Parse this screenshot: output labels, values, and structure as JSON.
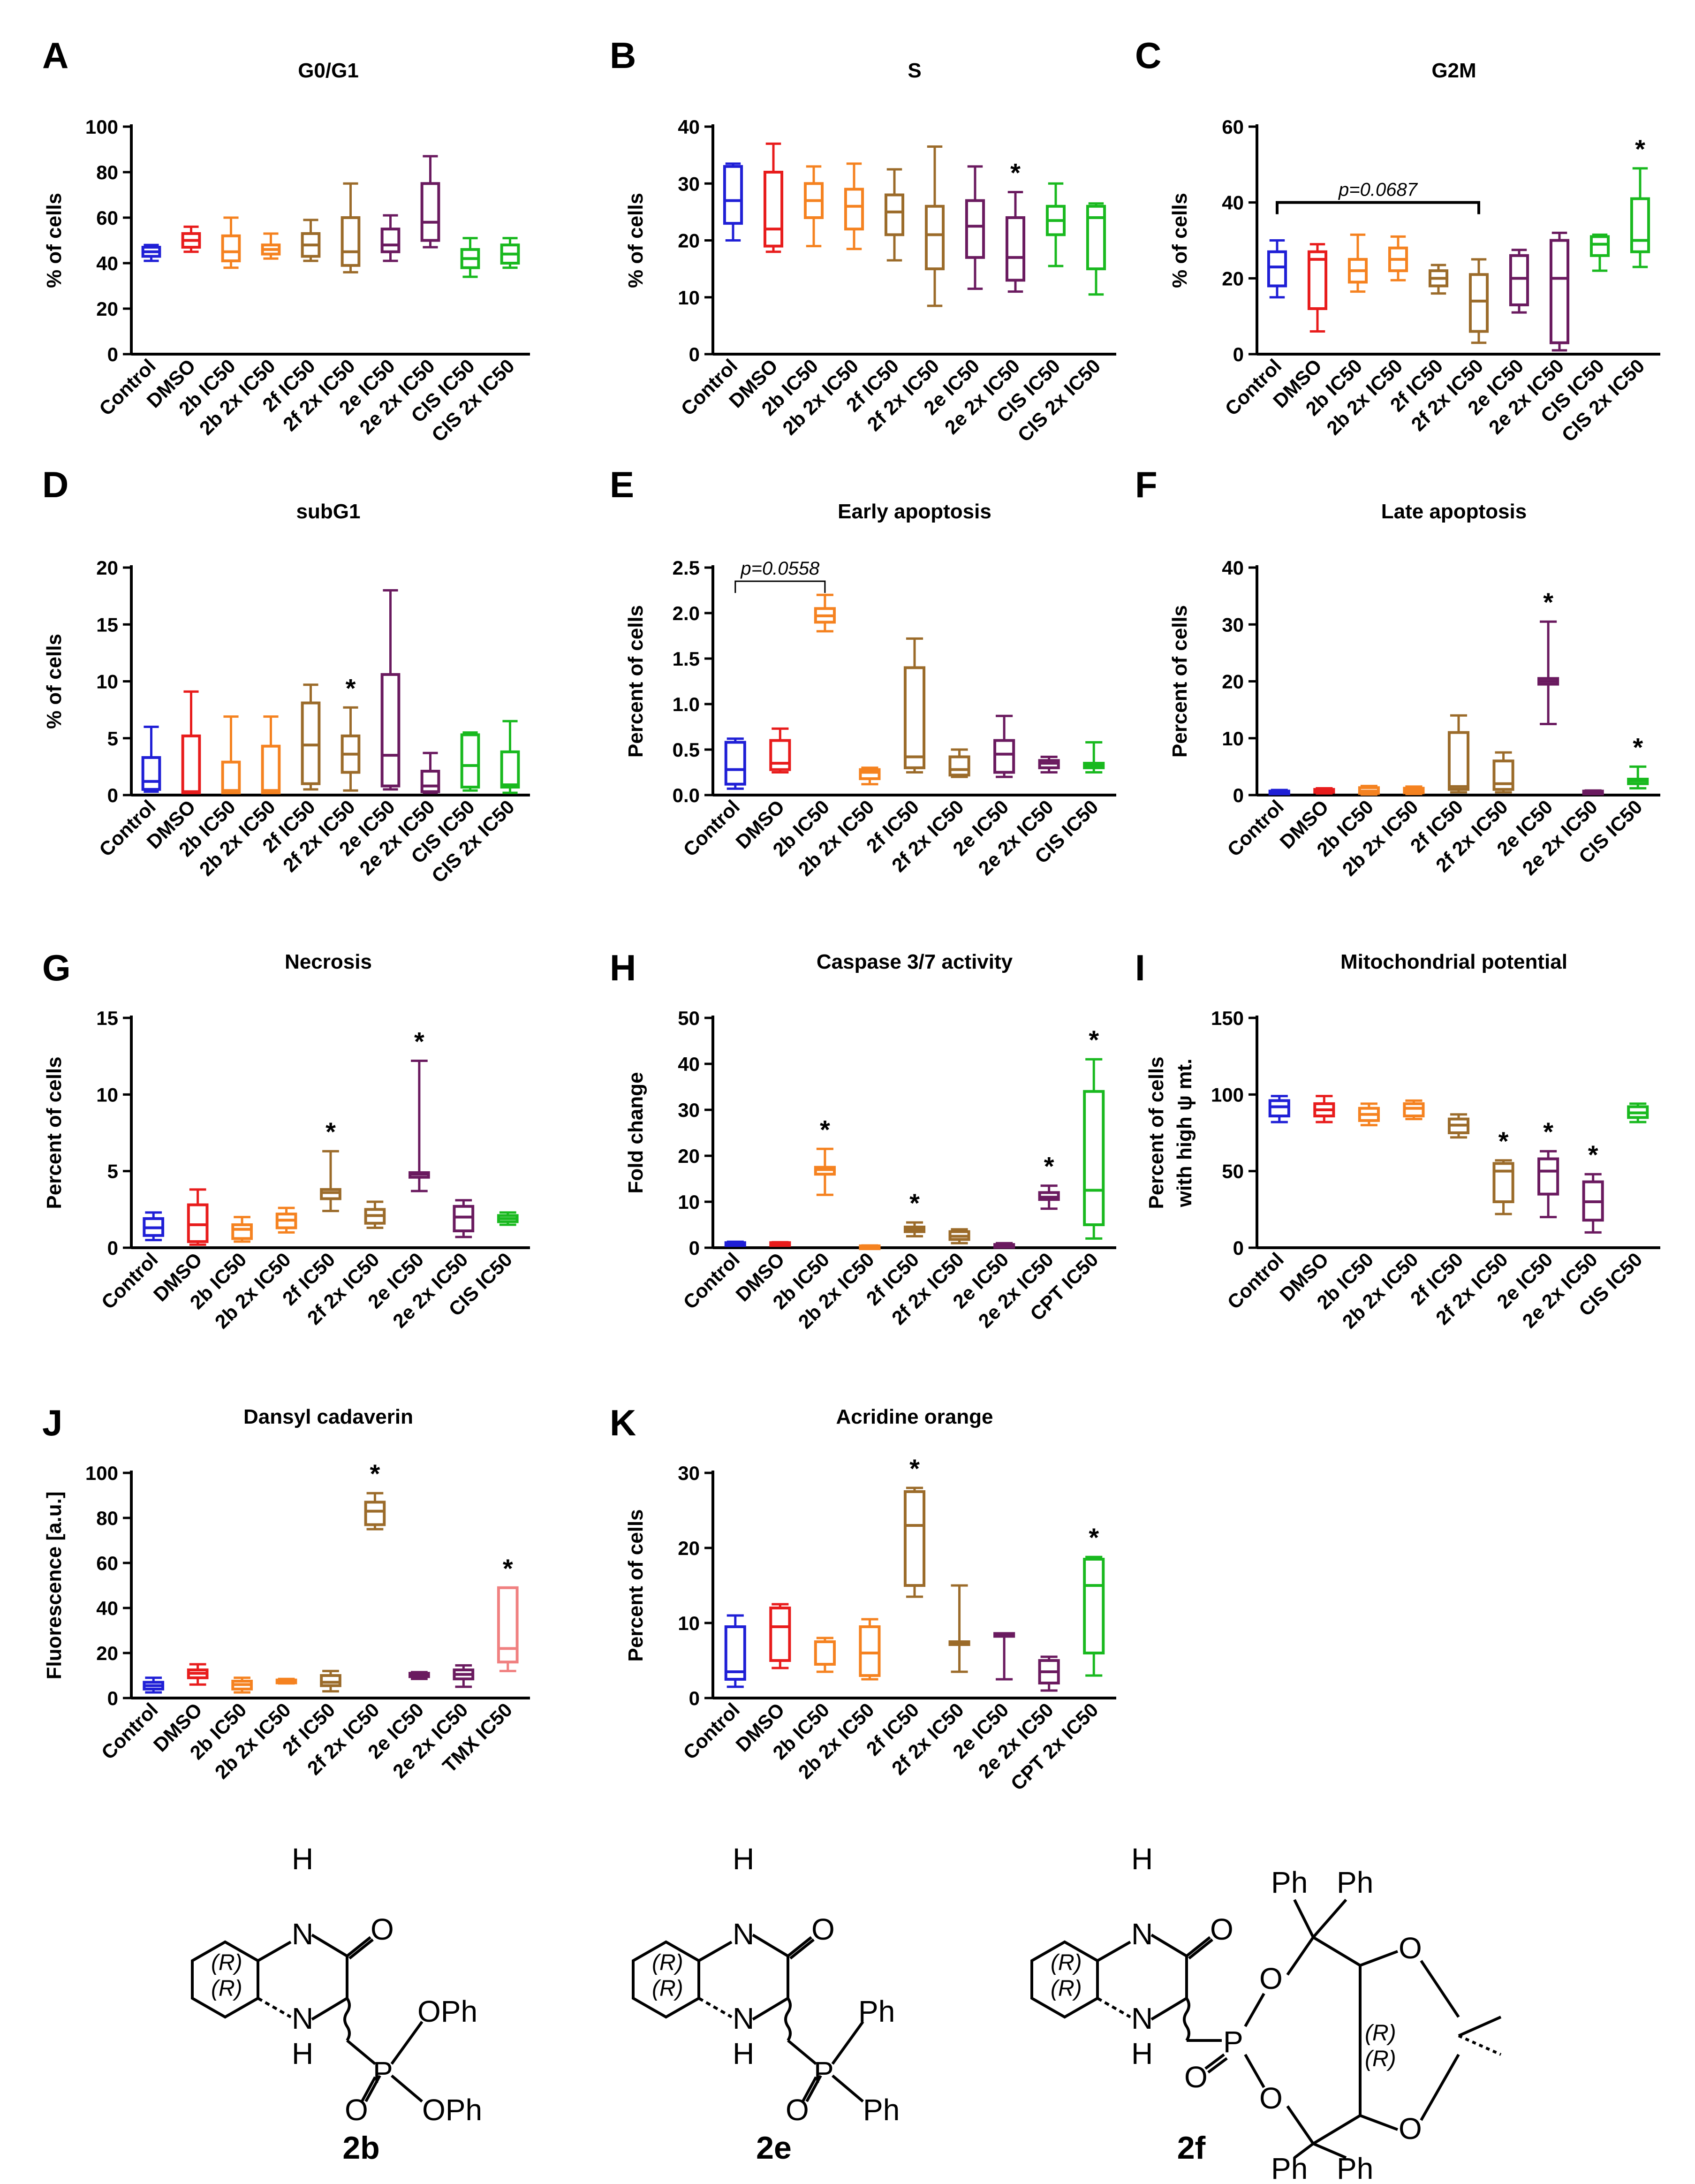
{
  "chart_data": [
    {
      "type": "box",
      "letter": "A",
      "title": "G0/G1",
      "ylabel": "% of cells",
      "ylim": [
        0,
        100
      ],
      "yticks": [
        0,
        20,
        40,
        60,
        80,
        100
      ],
      "categories": [
        "Control",
        "DMSO",
        "2b IC50",
        "2b 2x IC50",
        "2f IC50",
        "2f 2x IC50",
        "2e IC50",
        "2e 2x IC50",
        "CIS IC50",
        "CIS 2x IC50"
      ],
      "boxes": [
        [
          41,
          43,
          45,
          47,
          48
        ],
        [
          45,
          47,
          50,
          53,
          56
        ],
        [
          38,
          41,
          45,
          52,
          60
        ],
        [
          42,
          44,
          46,
          48,
          53
        ],
        [
          41,
          43,
          48,
          53,
          59
        ],
        [
          36,
          39,
          45,
          60,
          75
        ],
        [
          41,
          45,
          48,
          55,
          61
        ],
        [
          47,
          50,
          58,
          75,
          87
        ],
        [
          34,
          38,
          42,
          46,
          51
        ],
        [
          38,
          40,
          44,
          48,
          51
        ]
      ],
      "annotations": []
    },
    {
      "type": "box",
      "letter": "B",
      "title": "S",
      "ylabel": "% of cells",
      "ylim": [
        0,
        40
      ],
      "yticks": [
        0,
        10,
        20,
        30,
        40
      ],
      "categories": [
        "Control",
        "DMSO",
        "2b IC50",
        "2b 2x IC50",
        "2f IC50",
        "2f 2x IC50",
        "2e IC50",
        "2e 2x IC50",
        "CIS IC50",
        "CIS 2x IC50"
      ],
      "boxes": [
        [
          20,
          23,
          27,
          33,
          33.5
        ],
        [
          18,
          19,
          22,
          32,
          37
        ],
        [
          19,
          24,
          27,
          30,
          33
        ],
        [
          18.5,
          22,
          26,
          29,
          33.5
        ],
        [
          16.5,
          21,
          25,
          28,
          32.5
        ],
        [
          8.5,
          15,
          21,
          26,
          36.5
        ],
        [
          11.5,
          17,
          22.5,
          27,
          33
        ],
        [
          11,
          13,
          17,
          24,
          28.5
        ],
        [
          15.5,
          21,
          23.5,
          26,
          30
        ],
        [
          10.5,
          15,
          24,
          26,
          26.5
        ]
      ],
      "annotations": [
        {
          "category": "2e 2x IC50",
          "text": "*"
        }
      ]
    },
    {
      "type": "box",
      "letter": "C",
      "title": "G2M",
      "ylabel": "% of cells",
      "ylim": [
        0,
        60
      ],
      "yticks": [
        0,
        20,
        40,
        60
      ],
      "categories": [
        "Control",
        "DMSO",
        "2b IC50",
        "2b 2x IC50",
        "2f IC50",
        "2f 2x IC50",
        "2e IC50",
        "2e 2x IC50",
        "CIS IC50",
        "CIS 2x IC50"
      ],
      "boxes": [
        [
          15,
          18,
          23,
          27,
          30
        ],
        [
          6,
          12,
          25,
          27,
          29
        ],
        [
          16.5,
          19,
          22,
          25,
          31.5
        ],
        [
          19.5,
          22,
          25,
          28,
          31
        ],
        [
          16,
          18,
          20,
          22,
          23.5
        ],
        [
          3,
          6,
          14,
          21,
          25
        ],
        [
          11,
          13,
          20,
          26,
          27.5
        ],
        [
          1,
          3,
          20,
          30,
          32
        ],
        [
          22,
          26,
          29,
          31,
          31.5
        ],
        [
          23,
          27,
          30,
          41,
          49
        ]
      ],
      "annotations": [
        {
          "category": "CIS 2x IC50",
          "text": "*"
        }
      ],
      "bracket": {
        "from": "Control",
        "to": "2f 2x IC50",
        "value": 40,
        "text": "p=0.0687"
      }
    },
    {
      "type": "box",
      "letter": "D",
      "title": "subG1",
      "ylabel": "% of cells",
      "ylim": [
        0,
        20
      ],
      "yticks": [
        0,
        5,
        10,
        15,
        20
      ],
      "categories": [
        "Control",
        "DMSO",
        "2b IC50",
        "2b 2x IC50",
        "2f IC50",
        "2f 2x IC50",
        "2e IC50",
        "2e 2x IC50",
        "CIS IC50",
        "CIS 2x IC50"
      ],
      "boxes": [
        [
          0.3,
          0.5,
          1.2,
          3.3,
          6
        ],
        [
          0.2,
          0.2,
          0.3,
          5.2,
          9.1
        ],
        [
          0.2,
          0.2,
          0.4,
          2.9,
          6.9
        ],
        [
          0.2,
          0.2,
          0.4,
          4.3,
          6.9
        ],
        [
          0.5,
          1,
          4.4,
          8.1,
          9.7
        ],
        [
          0.4,
          2,
          3.6,
          5.2,
          7.7
        ],
        [
          0.5,
          0.8,
          3.5,
          10.6,
          18
        ],
        [
          0.2,
          0.3,
          0.8,
          2.1,
          3.7
        ],
        [
          0.4,
          0.7,
          2.6,
          5.3,
          5.5
        ],
        [
          0.2,
          0.7,
          0.9,
          3.8,
          6.5
        ]
      ],
      "annotations": [
        {
          "category": "2f 2x IC50",
          "text": "*"
        }
      ]
    },
    {
      "type": "box",
      "letter": "E",
      "title": "Early apoptosis",
      "ylabel": "Percent of cells",
      "ylim": [
        0,
        2.5
      ],
      "yticks": [
        0,
        0.5,
        1.0,
        1.5,
        2.0,
        2.5
      ],
      "categories": [
        "Control",
        "DMSO",
        "2b IC50",
        "2b 2x IC50",
        "2f IC50",
        "2f 2x IC50",
        "2e IC50",
        "2e 2x IC50",
        "CIS IC50"
      ],
      "boxes": [
        [
          0.07,
          0.12,
          0.28,
          0.58,
          0.62
        ],
        [
          0.25,
          0.28,
          0.35,
          0.6,
          0.73
        ],
        [
          1.8,
          1.9,
          1.97,
          2.05,
          2.2
        ],
        [
          0.12,
          0.18,
          0.25,
          0.28,
          0.3
        ],
        [
          0.25,
          0.3,
          0.42,
          1.4,
          1.72
        ],
        [
          0.2,
          0.22,
          0.28,
          0.42,
          0.5
        ],
        [
          0.2,
          0.25,
          0.45,
          0.6,
          0.87
        ],
        [
          0.25,
          0.3,
          0.35,
          0.38,
          0.42
        ],
        [
          0.25,
          0.3,
          0.32,
          0.35,
          0.58
        ]
      ],
      "annotations": [],
      "bracket": {
        "from": "Control",
        "to": "2b IC50",
        "value": 2.35,
        "text": "p=0.0558"
      }
    },
    {
      "type": "box",
      "letter": "F",
      "title": "Late apoptosis",
      "ylabel": "Percent of cells",
      "ylim": [
        0,
        40
      ],
      "yticks": [
        0,
        10,
        20,
        30,
        40
      ],
      "categories": [
        "Control",
        "DMSO",
        "2b IC50",
        "2b 2x IC50",
        "2f IC50",
        "2f 2x IC50",
        "2e IC50",
        "2e 2x IC50",
        "CIS IC50"
      ],
      "boxes": [
        [
          0.2,
          0.3,
          0.5,
          0.7,
          0.9
        ],
        [
          0.3,
          0.5,
          0.8,
          1,
          1.2
        ],
        [
          0.1,
          0.3,
          0.7,
          1.3,
          1.6
        ],
        [
          0.2,
          0.4,
          0.8,
          1.2,
          1.5
        ],
        [
          0.5,
          1,
          1.5,
          11,
          14
        ],
        [
          0.5,
          1,
          2,
          6,
          7.5
        ],
        [
          12.5,
          19.5,
          20,
          20.5,
          30.5
        ],
        [
          0.2,
          0.3,
          0.5,
          0.7,
          0.8
        ],
        [
          1.2,
          2,
          2.5,
          2.8,
          5
        ]
      ],
      "annotations": [
        {
          "category": "2e IC50",
          "text": "*"
        },
        {
          "category": "CIS IC50",
          "text": "*"
        }
      ]
    },
    {
      "type": "box",
      "letter": "G",
      "title": "Necrosis",
      "ylabel": "Percent of cells",
      "ylim": [
        0,
        15
      ],
      "yticks": [
        0,
        5,
        10,
        15
      ],
      "categories": [
        "Control",
        "DMSO",
        "2b IC50",
        "2b 2x IC50",
        "2f IC50",
        "2f 2x IC50",
        "2e IC50",
        "2e 2x IC50",
        "CIS IC50"
      ],
      "boxes": [
        [
          0.5,
          0.8,
          1.3,
          1.9,
          2.3
        ],
        [
          0.2,
          0.4,
          1.5,
          2.8,
          3.8
        ],
        [
          0.4,
          0.6,
          1.2,
          1.5,
          2
        ],
        [
          1,
          1.3,
          1.8,
          2.2,
          2.6
        ],
        [
          2.4,
          3.2,
          3.6,
          3.8,
          6.3
        ],
        [
          1.3,
          1.6,
          2.1,
          2.5,
          3
        ],
        [
          3.7,
          4.6,
          4.8,
          4.9,
          12.2
        ],
        [
          0.7,
          1.1,
          2,
          2.7,
          3.1
        ],
        [
          1.5,
          1.7,
          1.9,
          2.1,
          2.3
        ]
      ],
      "annotations": [
        {
          "category": "2f IC50",
          "text": "*"
        },
        {
          "category": "2e IC50",
          "text": "*"
        }
      ]
    },
    {
      "type": "box",
      "letter": "H",
      "title": "Caspase 3/7 activity",
      "ylabel": "Fold change",
      "ylim": [
        0,
        50
      ],
      "yticks": [
        0,
        10,
        20,
        30,
        40,
        50
      ],
      "categories": [
        "Control",
        "DMSO",
        "2b IC50",
        "2b 2x IC50",
        "2f IC50",
        "2f 2x IC50",
        "2e IC50",
        "2e 2x IC50",
        "CPT IC50"
      ],
      "boxes": [
        [
          0.6,
          0.8,
          1,
          1.1,
          1.3
        ],
        [
          0.6,
          0.8,
          1,
          1.1,
          1.2
        ],
        [
          11.5,
          16,
          17,
          17.5,
          21.5
        ],
        [
          0.1,
          0.2,
          0.3,
          0.4,
          0.5
        ],
        [
          2.5,
          3.5,
          4,
          4.5,
          5.5
        ],
        [
          1,
          1.8,
          2.5,
          3.5,
          4
        ],
        [
          0.1,
          0.3,
          0.5,
          0.7,
          1
        ],
        [
          8.5,
          10.5,
          11,
          12,
          13.5
        ],
        [
          2,
          5,
          12.5,
          34,
          41
        ]
      ],
      "annotations": [
        {
          "category": "2b IC50",
          "text": "*"
        },
        {
          "category": "2f IC50",
          "text": "*"
        },
        {
          "category": "2e 2x IC50",
          "text": "*"
        },
        {
          "category": "CPT IC50",
          "text": "*"
        }
      ]
    },
    {
      "type": "box",
      "letter": "I",
      "title": "Mitochondrial potential",
      "ylabel": "Percent of cells",
      "ylabel2": "with high ψ mt.",
      "ylim": [
        0,
        150
      ],
      "yticks": [
        0,
        50,
        100,
        150
      ],
      "categories": [
        "Control",
        "DMSO",
        "2b IC50",
        "2b 2x IC50",
        "2f IC50",
        "2f 2x IC50",
        "2e IC50",
        "2e 2x IC50",
        "CIS IC50"
      ],
      "boxes": [
        [
          82,
          86,
          92,
          96,
          99
        ],
        [
          82,
          86,
          90,
          94,
          99
        ],
        [
          80,
          83,
          87,
          91,
          94
        ],
        [
          84,
          86,
          91,
          94,
          96
        ],
        [
          72,
          75,
          80,
          84,
          87
        ],
        [
          22,
          30,
          50,
          55,
          57
        ],
        [
          20,
          35,
          50,
          58,
          63
        ],
        [
          10,
          18,
          30,
          43,
          48
        ],
        [
          82,
          85,
          88,
          92,
          94
        ]
      ],
      "annotations": [
        {
          "category": "2f 2x IC50",
          "text": "*"
        },
        {
          "category": "2e IC50",
          "text": "*"
        },
        {
          "category": "2e 2x IC50",
          "text": "*"
        }
      ]
    },
    {
      "type": "box",
      "letter": "J",
      "title": "Dansyl cadaverin",
      "ylabel": "Fluorescence [a.u.]",
      "ylim": [
        0,
        100
      ],
      "yticks": [
        0,
        20,
        40,
        60,
        80,
        100
      ],
      "categories": [
        "Control",
        "DMSO",
        "2b IC50",
        "2b 2x IC50",
        "2f IC50",
        "2f 2x IC50",
        "2e IC50",
        "2e 2x IC50",
        "TMX IC50"
      ],
      "boxes": [
        [
          2.5,
          4,
          5.5,
          7,
          9
        ],
        [
          6,
          9,
          11,
          12.5,
          15
        ],
        [
          2.5,
          4,
          6,
          7.5,
          9
        ],
        [
          6.5,
          7,
          7.5,
          8,
          8.5
        ],
        [
          3,
          5.5,
          7,
          10,
          12
        ],
        [
          75,
          77,
          83,
          87,
          91
        ],
        [
          8.5,
          9.5,
          10.5,
          11,
          11.5
        ],
        [
          5,
          8.5,
          10.5,
          12.5,
          14.5
        ],
        [
          12,
          16,
          22,
          49,
          49
        ]
      ],
      "annotations": [
        {
          "category": "2f 2x IC50",
          "text": "*"
        },
        {
          "category": "TMX IC50",
          "text": "*"
        }
      ]
    },
    {
      "type": "box",
      "letter": "K",
      "title": "Acridine orange",
      "ylabel": "Percent of cells",
      "ylim": [
        0,
        30
      ],
      "yticks": [
        0,
        10,
        20,
        30
      ],
      "categories": [
        "Control",
        "DMSO",
        "2b IC50",
        "2b 2x IC50",
        "2f IC50",
        "2f 2x IC50",
        "2e IC50",
        "2e 2x IC50",
        "CPT 2x IC50"
      ],
      "boxes": [
        [
          1.5,
          2.5,
          3.5,
          9.5,
          11
        ],
        [
          4,
          5,
          9.5,
          12,
          12.5
        ],
        [
          3.5,
          4.5,
          4.5,
          7.5,
          8
        ],
        [
          2.5,
          3,
          6,
          9.5,
          10.5
        ],
        [
          13.5,
          15,
          23,
          27.5,
          28
        ],
        [
          3.5,
          7.5,
          7.5,
          7.5,
          15
        ],
        [
          2.5,
          8.4,
          8.5,
          8.6,
          8.6
        ],
        [
          1,
          2,
          3.5,
          5,
          5.5
        ],
        [
          3,
          6,
          15,
          18.5,
          18.8
        ]
      ],
      "annotations": [
        {
          "category": "2f IC50",
          "text": "*"
        },
        {
          "category": "CPT 2x IC50",
          "text": "*"
        }
      ]
    }
  ],
  "compounds": [
    {
      "label": "2b",
      "stereo": [
        "(R)",
        "(R)"
      ],
      "substituents": [
        "OPh",
        "OPh"
      ],
      "atoms": [
        "H",
        "N",
        "O",
        "N",
        "H",
        "P",
        "O"
      ]
    },
    {
      "label": "2e",
      "stereo": [
        "(R)",
        "(R)"
      ],
      "substituents": [
        "Ph",
        "Ph"
      ],
      "atoms": [
        "H",
        "N",
        "O",
        "N",
        "H",
        "P",
        "O"
      ]
    },
    {
      "label": "2f",
      "stereo": [
        "(R)",
        "(R)",
        "(R)",
        "(R)"
      ],
      "substituents": [
        "Ph",
        "Ph",
        "Ph",
        "Ph"
      ],
      "atoms": [
        "H",
        "N",
        "O",
        "N",
        "H",
        "P",
        "O",
        "O",
        "O",
        "O",
        "O"
      ]
    }
  ],
  "palette": {
    "Control": "#1f1fd6",
    "DMSO": "#e81c1c",
    "2b": "#f58220",
    "2f": "#9b6b2a",
    "2e": "#6a1a5f",
    "CIS": "#19b91f",
    "CPT": "#19b91f",
    "TMX": "#f08080"
  }
}
